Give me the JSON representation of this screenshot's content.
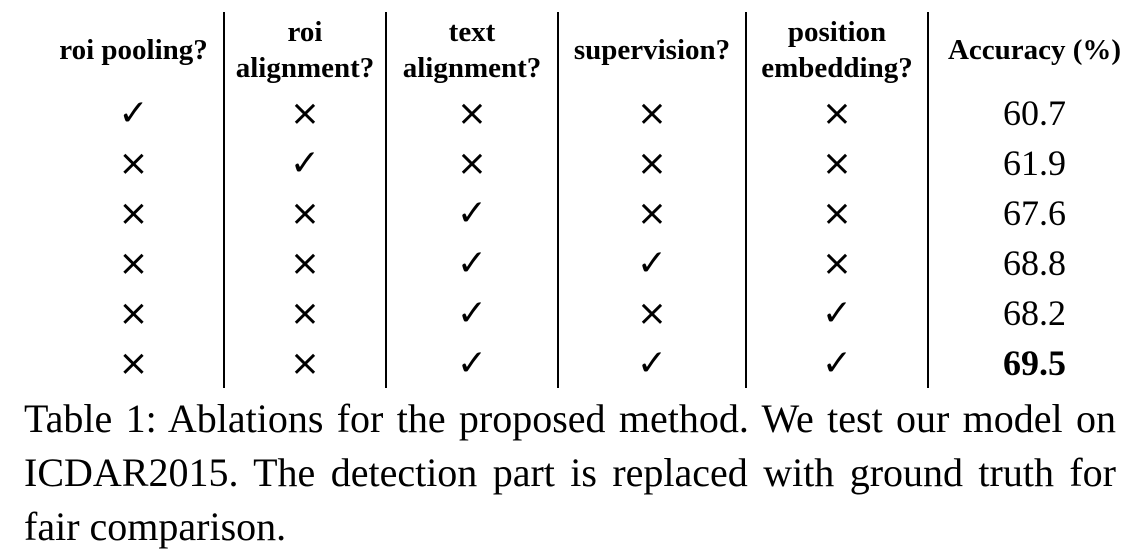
{
  "table": {
    "headers": [
      {
        "line1": "roi pooling?",
        "line2": ""
      },
      {
        "line1": "roi",
        "line2": "alignment?"
      },
      {
        "line1": "text",
        "line2": "alignment?"
      },
      {
        "line1": "supervision?",
        "line2": ""
      },
      {
        "line1": "position",
        "line2": "embedding?"
      },
      {
        "line1": "Accuracy (%)",
        "line2": ""
      }
    ],
    "check_symbol": "✓",
    "cross_symbol": "×",
    "rows": [
      {
        "marks": [
          "✓",
          "×",
          "×",
          "×",
          "×"
        ],
        "accuracy": "60.7",
        "best": false
      },
      {
        "marks": [
          "×",
          "✓",
          "×",
          "×",
          "×"
        ],
        "accuracy": "61.9",
        "best": false
      },
      {
        "marks": [
          "×",
          "×",
          "✓",
          "×",
          "×"
        ],
        "accuracy": "67.6",
        "best": false
      },
      {
        "marks": [
          "×",
          "×",
          "✓",
          "✓",
          "×"
        ],
        "accuracy": "68.8",
        "best": false
      },
      {
        "marks": [
          "×",
          "×",
          "✓",
          "×",
          "✓"
        ],
        "accuracy": "68.2",
        "best": false
      },
      {
        "marks": [
          "×",
          "×",
          "✓",
          "✓",
          "✓"
        ],
        "accuracy": "69.5",
        "best": true
      }
    ]
  },
  "caption": "Table 1: Ablations for the proposed method. We test our model on ICDAR2015. The detection part is replaced with ground truth for fair comparison."
}
